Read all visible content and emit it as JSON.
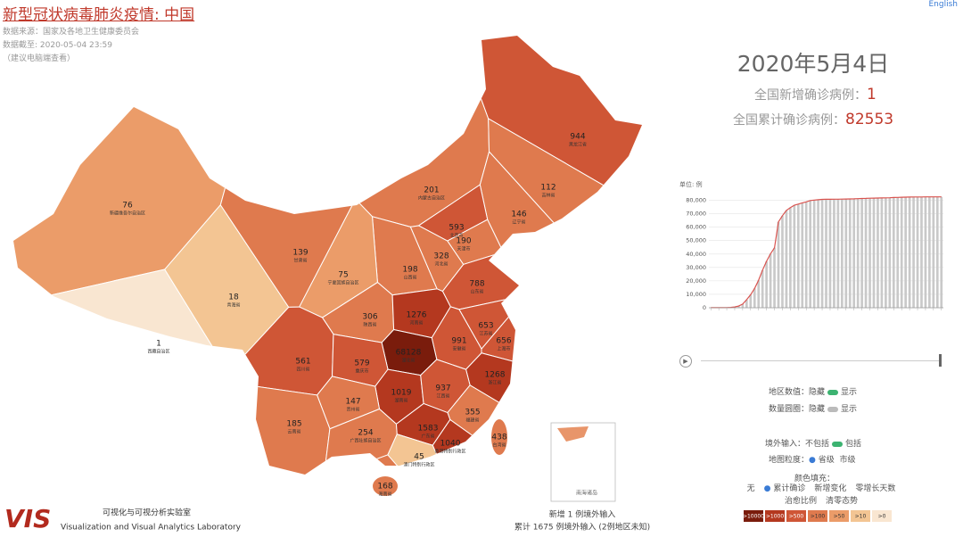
{
  "header": {
    "title": "新型冠状病毒肺炎疫情: 中国",
    "source": "数据来源：国家及各地卫生健康委员会",
    "updated": "数据截至: 2020-05-04 23:59",
    "note": "（建议电脑端查看）",
    "language": "English"
  },
  "summary": {
    "date": "2020年5月4日",
    "new_label": "全国新增确诊病例：",
    "new_value": 1,
    "total_label": "全国累计确诊病例：",
    "total_value": 82553
  },
  "chart_data": {
    "type": "bar",
    "unit_label": "单位: 例",
    "color": "#c9c9c9",
    "line_color": "#d9534f",
    "values": [
      41,
      41,
      41,
      45,
      121,
      291,
      571,
      1287,
      2744,
      5974,
      9692,
      14380,
      20438,
      28018,
      34546,
      40171,
      44653,
      63851,
      68500,
      72436,
      74576,
      76288,
      77150,
      78064,
      78824,
      79824,
      80151,
      80409,
      80651,
      80735,
      80754,
      80793,
      80844,
      80860,
      80928,
      81008,
      81093,
      81218,
      81340,
      81439,
      81518,
      81589,
      81669,
      81740,
      81802,
      81907,
      82052,
      82160,
      82295,
      82341,
      82407,
      82447,
      82477,
      82499,
      82520,
      82536,
      82545,
      82552,
      82553
    ],
    "ylim": [
      0,
      85000
    ],
    "yticks": [
      0,
      {
        "value": 10000,
        "label": "10,000"
      },
      {
        "value": 20000,
        "label": "20,000"
      },
      {
        "value": 30000,
        "label": "30,000"
      },
      {
        "value": 40000,
        "label": "40,000"
      },
      {
        "value": 50000,
        "label": "50,000"
      },
      {
        "value": 60000,
        "label": "60,000"
      },
      {
        "value": 70000,
        "label": "70,000"
      },
      {
        "value": 80000,
        "label": "80,000"
      }
    ],
    "grid": true
  },
  "map": {
    "provinces": [
      {
        "name": "新疆维吾尔自治区",
        "value": 76
      },
      {
        "name": "西藏自治区",
        "value": 1
      },
      {
        "name": "青海省",
        "value": 18
      },
      {
        "name": "甘肃省",
        "value": 139
      },
      {
        "name": "内蒙古自治区",
        "value": 201
      },
      {
        "name": "黑龙江省",
        "value": 944
      },
      {
        "name": "吉林省",
        "value": 112
      },
      {
        "name": "辽宁省",
        "value": 146
      },
      {
        "name": "北京市",
        "value": 593
      },
      {
        "name": "天津市",
        "value": 190
      },
      {
        "name": "河北省",
        "value": 328
      },
      {
        "name": "山西省",
        "value": 198
      },
      {
        "name": "宁夏回族自治区",
        "value": 75
      },
      {
        "name": "陕西省",
        "value": 306
      },
      {
        "name": "山东省",
        "value": 788
      },
      {
        "name": "河南省",
        "value": 1276
      },
      {
        "name": "江苏省",
        "value": 653
      },
      {
        "name": "安徽省",
        "value": 991
      },
      {
        "name": "上海市",
        "value": 656
      },
      {
        "name": "湖北省",
        "value": 68128
      },
      {
        "name": "浙江省",
        "value": 1268
      },
      {
        "name": "四川省",
        "value": 561
      },
      {
        "name": "重庆市",
        "value": 579
      },
      {
        "name": "湖南省",
        "value": 1019
      },
      {
        "name": "江西省",
        "value": 937
      },
      {
        "name": "贵州省",
        "value": 147
      },
      {
        "name": "福建省",
        "value": 355
      },
      {
        "name": "云南省",
        "value": 185
      },
      {
        "name": "广西壮族自治区",
        "value": 254
      },
      {
        "name": "广东省",
        "value": 1583
      },
      {
        "name": "台湾省",
        "value": 438
      },
      {
        "name": "香港特别行政区",
        "value": 1040
      },
      {
        "name": "澳门特别行政区",
        "value": 45
      },
      {
        "name": "海南省",
        "value": 168
      }
    ],
    "legend": [
      {
        "value": 10000,
        "label": ">10000",
        "color": "#7a1c0c"
      },
      {
        "value": 1000,
        "label": ">1000",
        "color": "#b4381f"
      },
      {
        "value": 500,
        "label": ">500",
        "color": "#cf5636"
      },
      {
        "value": 100,
        "label": ">100",
        "color": "#df7a4e"
      },
      {
        "value": 50,
        "label": ">50",
        "color": "#eb9c69"
      },
      {
        "value": 10,
        "label": ">10",
        "color": "#f3c593"
      },
      {
        "value": 0,
        "label": ">0",
        "color": "#f9e6d1"
      }
    ],
    "inset_label": "南海诸岛",
    "footer_new": "新增 1 例境外输入",
    "footer_total": "累计 1675 例境外输入 (2例地区未知)"
  },
  "controls": {
    "region_value": {
      "label": "地区数值：",
      "off": "隐藏",
      "on": "显示"
    },
    "circles": {
      "label": "数量圆圈：",
      "off": "隐藏",
      "on": "显示"
    },
    "imported": {
      "label": "境外输入：",
      "off": "不包括",
      "on": "包括"
    },
    "granularity": {
      "label": "地图粒度：",
      "a": "省级",
      "b": "市级"
    },
    "fill": {
      "label": "颜色填充：",
      "options": [
        "无",
        "累计确诊",
        "新增变化",
        "零增长天数",
        "治愈比例",
        "清零态势"
      ]
    }
  },
  "lab": {
    "cn": "可视化与可视分析实验室",
    "en": "Visualization and Visual Analytics Laboratory"
  }
}
